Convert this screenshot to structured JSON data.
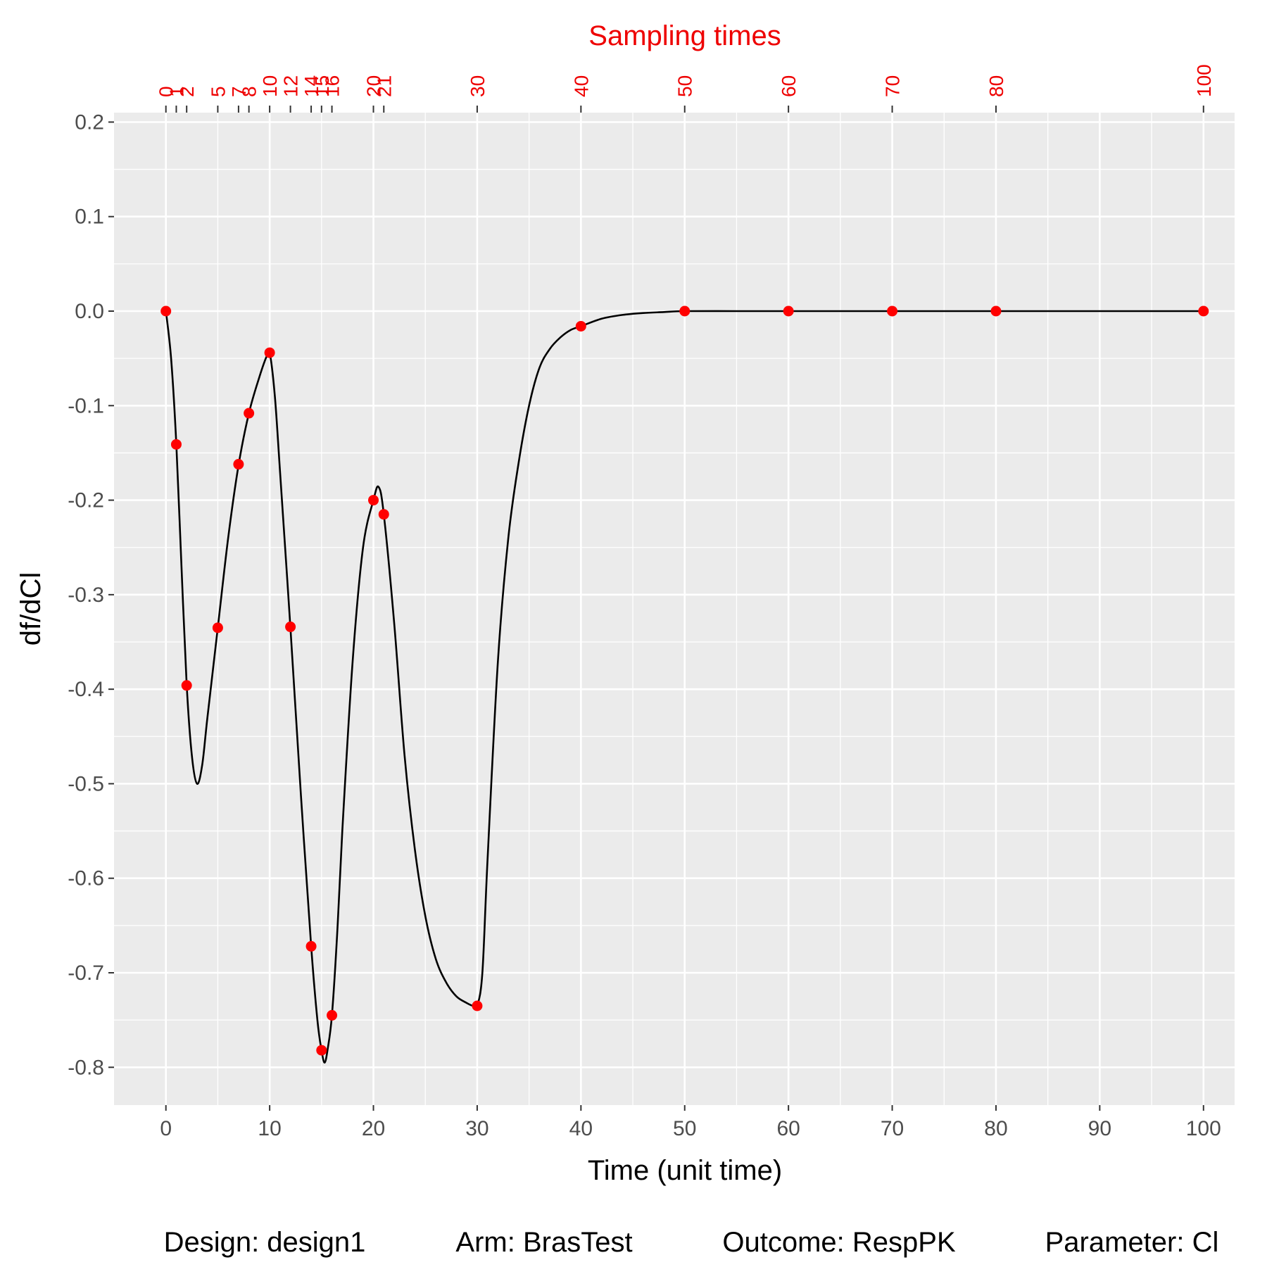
{
  "chart_data": {
    "type": "line",
    "xlabel": "Time (unit time)",
    "ylabel": "df/dCl",
    "top_axis_title": "Sampling times",
    "xlim": [
      -5,
      103
    ],
    "ylim": [
      -0.84,
      0.21
    ],
    "x_ticks": [
      0,
      10,
      20,
      30,
      40,
      50,
      60,
      70,
      80,
      90,
      100
    ],
    "y_ticks": [
      0.2,
      0.1,
      0.0,
      -0.1,
      -0.2,
      -0.3,
      -0.4,
      -0.5,
      -0.6,
      -0.7,
      -0.8
    ],
    "y_tick_labels": [
      "0.2",
      "0.1",
      "0.0",
      "-0.1",
      "-0.2",
      "-0.3",
      "-0.4",
      "-0.5",
      "-0.6",
      "-0.7",
      "-0.8"
    ],
    "sampling_times": [
      0,
      1,
      2,
      5,
      7,
      8,
      10,
      12,
      14,
      15,
      16,
      20,
      21,
      30,
      40,
      50,
      60,
      70,
      80,
      100
    ],
    "curve": {
      "x": [
        0,
        0.5,
        1,
        1.5,
        2,
        2.5,
        3,
        3.5,
        4,
        5,
        6,
        7,
        8,
        9,
        9.7,
        10,
        10.5,
        11,
        12,
        13,
        14,
        14.6,
        15,
        15.3,
        15.6,
        16,
        16.5,
        17,
        18,
        19,
        20,
        20.5,
        21,
        22,
        23,
        24,
        25,
        26,
        27,
        28,
        29,
        29.6,
        30,
        30.5,
        31,
        32,
        33,
        34,
        35,
        36,
        37,
        38,
        39,
        40,
        42,
        44,
        46,
        48,
        50,
        55,
        60,
        70,
        80,
        90,
        100
      ],
      "y": [
        0,
        -0.05,
        -0.14,
        -0.27,
        -0.395,
        -0.47,
        -0.5,
        -0.48,
        -0.43,
        -0.335,
        -0.24,
        -0.163,
        -0.108,
        -0.07,
        -0.048,
        -0.044,
        -0.09,
        -0.17,
        -0.335,
        -0.51,
        -0.672,
        -0.75,
        -0.782,
        -0.795,
        -0.78,
        -0.745,
        -0.66,
        -0.55,
        -0.37,
        -0.25,
        -0.2,
        -0.186,
        -0.215,
        -0.33,
        -0.47,
        -0.57,
        -0.64,
        -0.685,
        -0.71,
        -0.725,
        -0.732,
        -0.735,
        -0.735,
        -0.7,
        -0.58,
        -0.37,
        -0.24,
        -0.16,
        -0.1,
        -0.06,
        -0.04,
        -0.028,
        -0.02,
        -0.016,
        -0.008,
        -0.004,
        -0.002,
        -0.001,
        0,
        0,
        0,
        0,
        0,
        0,
        0
      ]
    },
    "points": {
      "x": [
        0,
        1,
        2,
        5,
        7,
        8,
        10,
        12,
        14,
        15,
        16,
        20,
        21,
        30,
        40,
        50,
        60,
        70,
        80,
        100
      ],
      "y": [
        0.0,
        -0.141,
        -0.396,
        -0.335,
        -0.162,
        -0.108,
        -0.044,
        -0.334,
        -0.672,
        -0.782,
        -0.745,
        -0.2,
        -0.215,
        -0.735,
        -0.016,
        0.0,
        0.0,
        0.0,
        0.0,
        0.0
      ]
    },
    "grid": true,
    "panel_background": "#ebebeb",
    "grid_color": "#ffffff",
    "point_color": "#ff0000",
    "line_color": "#000000",
    "accent_color": "#ee0000"
  },
  "caption": {
    "design": "Design: design1",
    "arm": "Arm: BrasTest",
    "outcome": "Outcome: RespPK",
    "parameter": "Parameter: Cl"
  }
}
